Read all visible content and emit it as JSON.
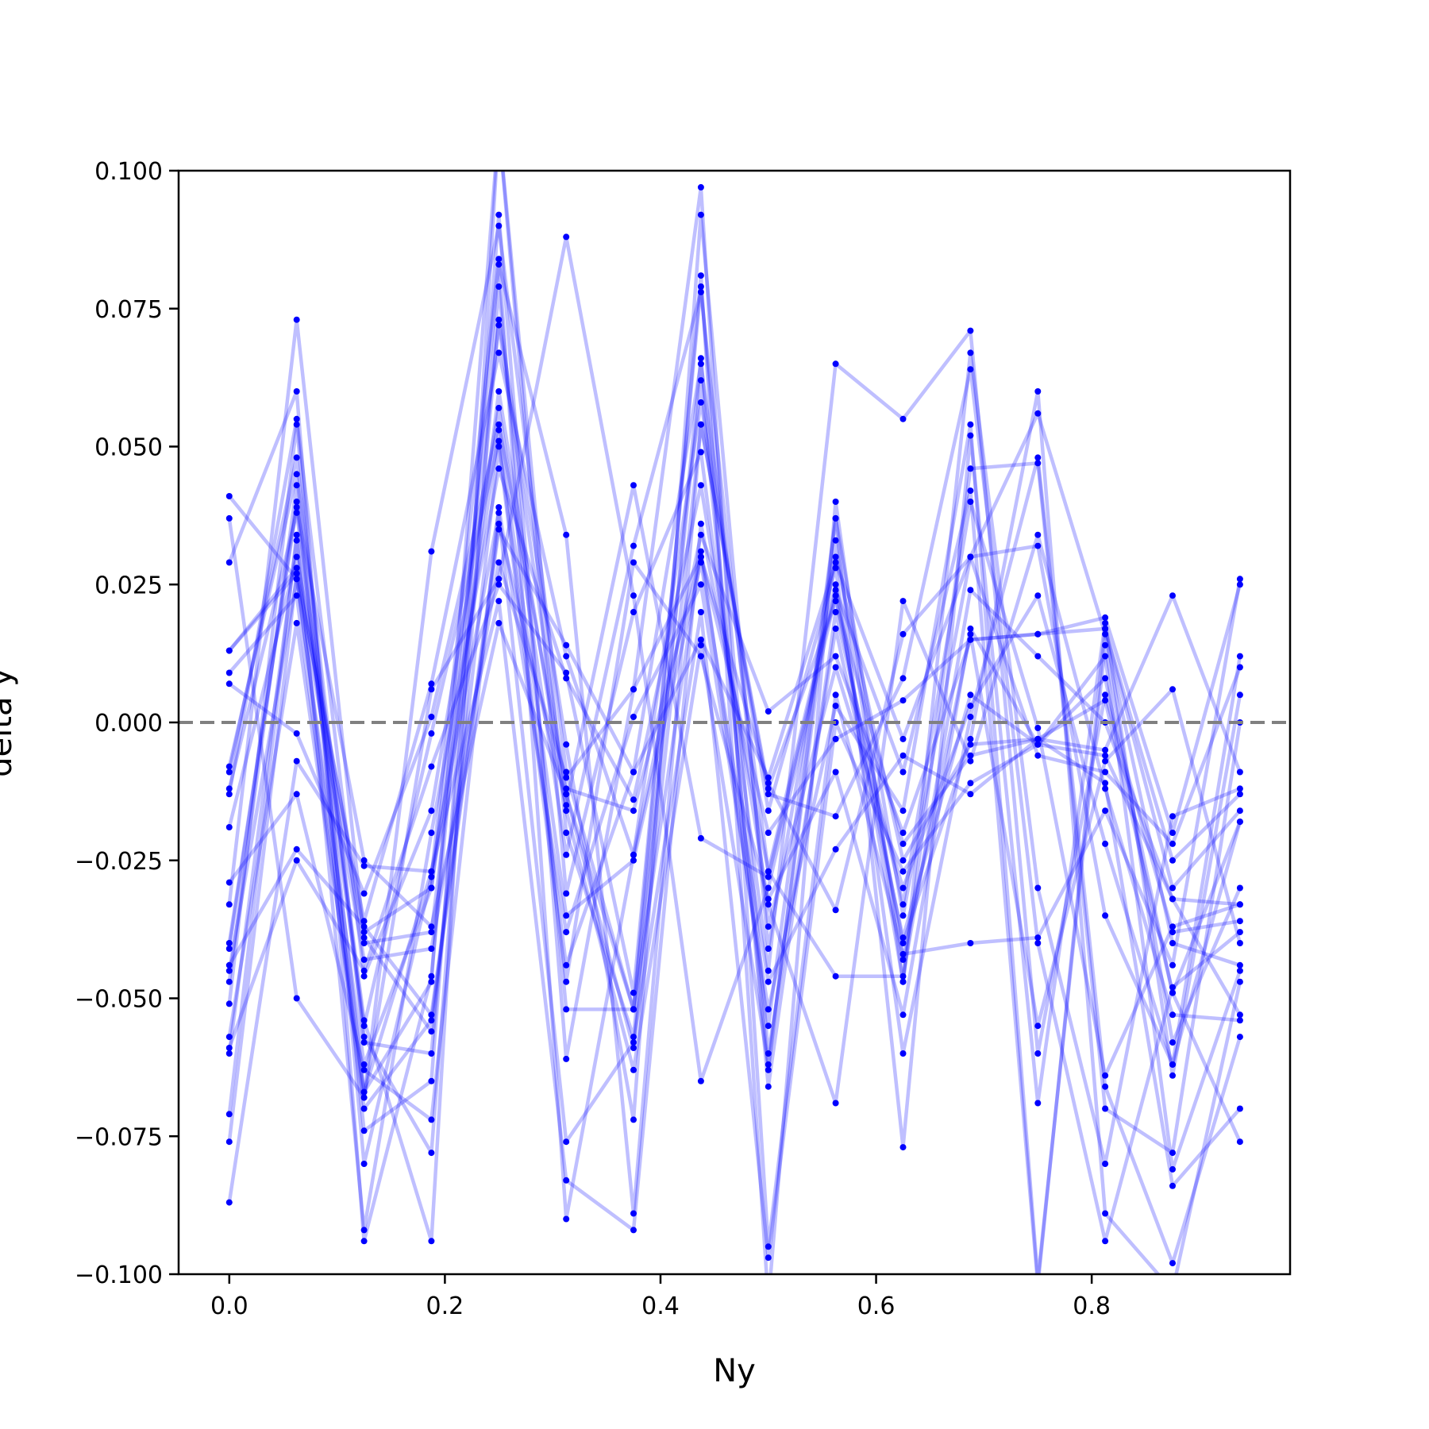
{
  "chart_data": {
    "type": "line",
    "xlabel": "Ny",
    "ylabel": "delta y",
    "xlim": [
      -0.047,
      0.984
    ],
    "ylim": [
      -0.1,
      0.1
    ],
    "x": [
      0.0,
      0.0625,
      0.125,
      0.1875,
      0.25,
      0.3125,
      0.375,
      0.4375,
      0.5,
      0.5625,
      0.625,
      0.6875,
      0.75,
      0.8125,
      0.875,
      0.9375
    ],
    "xticks": [
      "0.0",
      "0.2",
      "0.4",
      "0.6",
      "0.8"
    ],
    "xtick_values": [
      0.0,
      0.2,
      0.4,
      0.6,
      0.8
    ],
    "yticks": [
      "−0.100",
      "−0.075",
      "−0.050",
      "−0.025",
      "0.000",
      "0.025",
      "0.050",
      "0.075",
      "0.100"
    ],
    "ytick_values": [
      -0.1,
      -0.075,
      -0.05,
      -0.025,
      0.0,
      0.025,
      0.05,
      0.075,
      0.1
    ],
    "reference_line": {
      "y": 0.0,
      "style": "dashed",
      "color": "#808080"
    },
    "grid": false,
    "line_color": "#0000ff",
    "line_alpha": 0.25,
    "marker_color": "#0000ff",
    "series": [
      {
        "values": [
          0.041,
          0.026,
          -0.062,
          -0.03,
          0.072,
          -0.013,
          -0.052,
          0.031,
          -0.055,
          0.037,
          -0.035,
          0.03,
          0.032,
          -0.035,
          -0.062,
          0.012
        ]
      },
      {
        "values": [
          0.037,
          -0.05,
          -0.068,
          0.031,
          0.09,
          -0.009,
          -0.052,
          0.081,
          -0.105,
          0.04,
          -0.047,
          0.067,
          -0.03,
          -0.08,
          -0.017,
          -0.012
        ]
      },
      {
        "values": [
          0.029,
          0.06,
          -0.094,
          -0.046,
          0.083,
          0.034,
          -0.089,
          0.054,
          -0.012,
          0.022,
          -0.022,
          -0.006,
          -0.003,
          0.004,
          -0.049,
          -0.018
        ]
      },
      {
        "values": [
          0.013,
          0.028,
          -0.04,
          -0.038,
          0.06,
          -0.016,
          -0.063,
          0.014,
          -0.062,
          0.033,
          -0.043,
          0.016,
          -0.055,
          -0.007,
          0.006,
          -0.04
        ]
      },
      {
        "values": [
          0.013,
          0.027,
          -0.036,
          0.007,
          0.067,
          0.012,
          -0.024,
          0.034,
          0.002,
          0.012,
          -0.02,
          0.015,
          0.016,
          0.019,
          -0.02,
          0.025
        ]
      },
      {
        "values": [
          0.009,
          0.023,
          -0.07,
          -0.054,
          0.035,
          0.014,
          -0.009,
          0.065,
          -0.027,
          0.025,
          -0.047,
          0.046,
          0.047,
          -0.07,
          -0.078,
          0.0
        ]
      },
      {
        "values": [
          0.007,
          -0.002,
          -0.031,
          0.001,
          0.054,
          -0.012,
          -0.016,
          0.03,
          -0.02,
          -0.003,
          0.004,
          0.015,
          0.016,
          0.017,
          -0.03,
          -0.016
        ]
      },
      {
        "values": [
          -0.008,
          0.045,
          -0.058,
          -0.06,
          0.073,
          -0.004,
          -0.072,
          0.092,
          -0.041,
          0.03,
          -0.025,
          -0.004,
          -0.003,
          -0.005,
          0.023,
          -0.009
        ]
      },
      {
        "values": [
          -0.009,
          0.048,
          -0.057,
          -0.078,
          0.079,
          -0.052,
          -0.052,
          0.062,
          -0.063,
          0.037,
          -0.077,
          0.052,
          -0.069,
          0.018,
          -0.064,
          0.005
        ]
      },
      {
        "values": [
          -0.012,
          0.038,
          -0.054,
          -0.094,
          0.108,
          -0.02,
          -0.057,
          0.066,
          -0.066,
          0.02,
          -0.033,
          0.04,
          -0.001,
          -0.064,
          -0.037,
          -0.033
        ]
      },
      {
        "values": [
          -0.013,
          0.055,
          -0.046,
          -0.016,
          0.057,
          -0.024,
          0.032,
          0.078,
          -0.037,
          0.01,
          -0.03,
          0.003,
          0.023,
          -0.022,
          -0.062,
          -0.018
        ]
      },
      {
        "values": [
          -0.019,
          0.03,
          -0.038,
          -0.03,
          0.053,
          -0.035,
          -0.025,
          0.029,
          -0.047,
          -0.023,
          -0.006,
          -0.013,
          -0.003,
          -0.011,
          -0.084,
          -0.07
        ]
      },
      {
        "values": [
          -0.029,
          -0.013,
          -0.063,
          -0.072,
          0.039,
          -0.038,
          0.001,
          0.025,
          -0.052,
          0.003,
          -0.016,
          0.054,
          -0.101,
          0.014,
          -0.058,
          -0.03
        ]
      },
      {
        "values": [
          -0.033,
          0.073,
          -0.039,
          -0.056,
          0.05,
          -0.047,
          0.029,
          0.012,
          -0.032,
          -0.009,
          -0.053,
          0.017,
          -0.004,
          0.012,
          -0.081,
          -0.045
        ]
      },
      {
        "values": [
          -0.04,
          0.039,
          -0.025,
          -0.037,
          0.018,
          -0.013,
          -0.059,
          0.054,
          -0.013,
          -0.017,
          0.008,
          0.064,
          -0.04,
          -0.094,
          -0.048,
          -0.038
        ]
      },
      {
        "values": [
          -0.041,
          0.04,
          -0.067,
          -0.047,
          0.108,
          -0.031,
          0.02,
          0.049,
          -0.045,
          0.065,
          0.055,
          0.071,
          -0.06,
          0.005,
          -0.038,
          -0.036
        ]
      },
      {
        "values": [
          -0.044,
          -0.023,
          -0.037,
          -0.053,
          0.036,
          -0.015,
          0.043,
          -0.021,
          -0.028,
          0.024,
          -0.009,
          0.042,
          -0.102,
          0.017,
          -0.025,
          -0.013
        ]
      },
      {
        "values": [
          -0.045,
          0.026,
          -0.043,
          -0.041,
          0.029,
          -0.01,
          0.006,
          0.03,
          -0.011,
          -0.034,
          0.016,
          0.03,
          -0.006,
          -0.009,
          -0.022,
          0.01
        ]
      },
      {
        "values": [
          -0.051,
          0.054,
          -0.08,
          -0.028,
          0.084,
          -0.09,
          -0.024,
          0.058,
          -0.016,
          0.028,
          -0.06,
          0.001,
          0.048,
          -0.066,
          -0.098,
          -0.057
        ]
      },
      {
        "values": [
          -0.057,
          0.018,
          -0.067,
          -0.027,
          0.022,
          -0.083,
          -0.092,
          0.036,
          -0.027,
          -0.046,
          -0.046,
          0.024,
          0.012,
          0.0,
          -0.032,
          -0.053
        ]
      },
      {
        "values": [
          -0.059,
          -0.025,
          -0.045,
          -0.008,
          0.025,
          0.009,
          -0.049,
          0.079,
          -0.06,
          0.017,
          -0.039,
          0.005,
          -0.004,
          -0.006,
          -0.032,
          -0.033
        ]
      },
      {
        "values": [
          -0.06,
          0.033,
          -0.055,
          -0.002,
          0.051,
          -0.044,
          -0.009,
          0.015,
          -0.01,
          0.029,
          -0.003,
          0.03,
          0.056,
          0.016,
          -0.04,
          -0.044
        ]
      },
      {
        "values": [
          -0.071,
          0.034,
          -0.092,
          -0.02,
          0.046,
          0.008,
          -0.014,
          0.043,
          -0.033,
          -0.069,
          0.022,
          -0.007,
          0.034,
          -0.012,
          -0.053,
          -0.054
        ]
      },
      {
        "values": [
          -0.076,
          0.027,
          -0.068,
          0.006,
          0.026,
          0.088,
          0.023,
          -0.065,
          -0.03,
          0.023,
          -0.04,
          -0.003,
          0.06,
          -0.089,
          -0.103,
          -0.047
        ]
      },
      {
        "values": [
          -0.087,
          -0.007,
          -0.026,
          -0.027,
          0.038,
          -0.076,
          -0.058,
          0.02,
          -0.097,
          0.0,
          -0.027,
          -0.011,
          -0.004,
          0.008,
          -0.049,
          -0.076
        ]
      },
      {
        "values": [
          -0.047,
          0.043,
          -0.074,
          -0.065,
          0.092,
          -0.061,
          0.006,
          0.097,
          -0.095,
          0.005,
          -0.042,
          -0.04,
          -0.039,
          -0.016,
          -0.044,
          0.026
        ]
      }
    ]
  }
}
